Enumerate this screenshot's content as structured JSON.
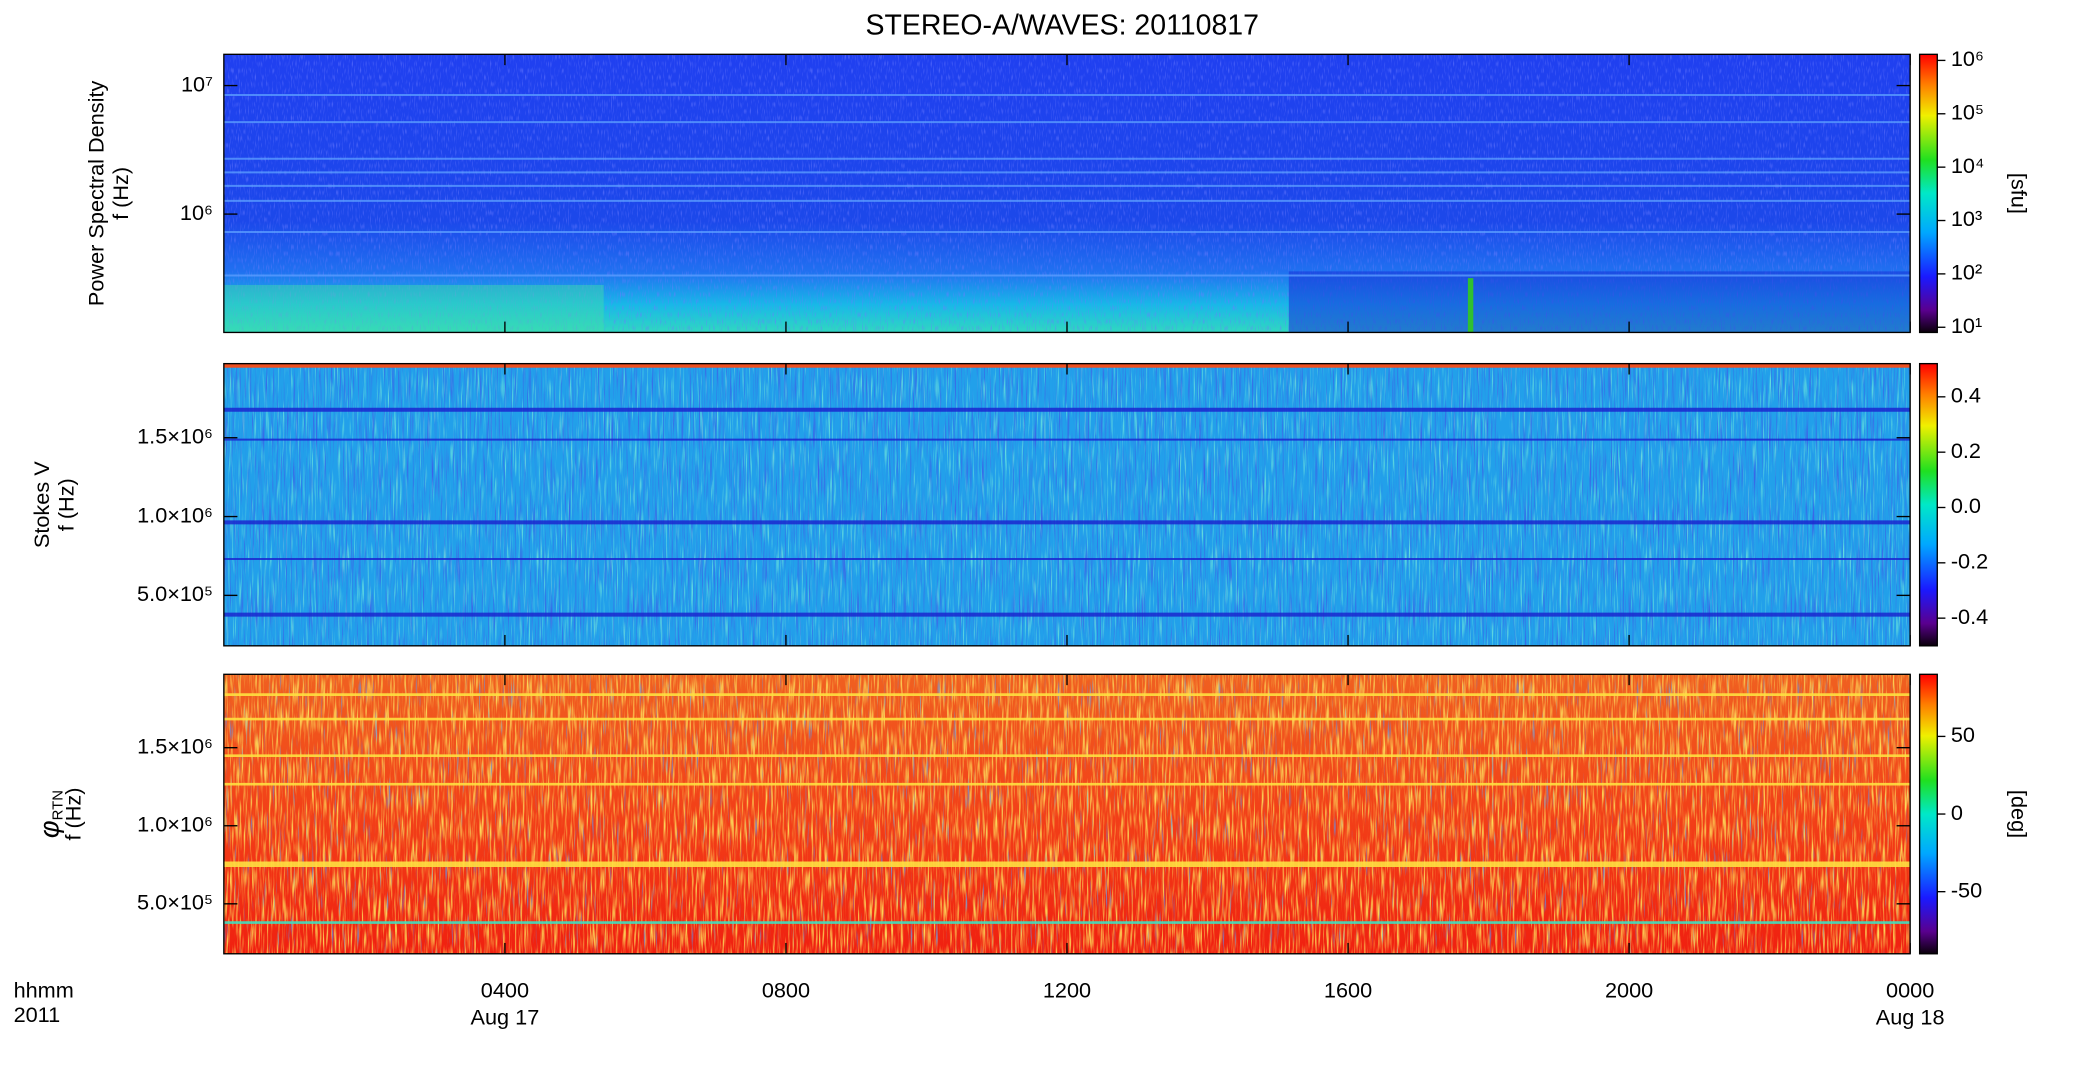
{
  "chart_data": [
    {
      "type": "spectrogram",
      "title": "STEREO-A/WAVES: 20110817",
      "ylabel": "Power Spectral Density",
      "ylabel_unit": "f (Hz)",
      "ylog": true,
      "ylim": [
        120000,
        17500000
      ],
      "yticks": [
        {
          "value": 1000000,
          "label": "10⁶"
        },
        {
          "value": 10000000,
          "label": "10⁷"
        }
      ],
      "xlim": [
        0,
        24
      ],
      "colorbar": {
        "log": true,
        "lim": [
          8,
          1300000
        ],
        "label": "[sfu]",
        "ticks": [
          {
            "value": 10,
            "label": "10¹"
          },
          {
            "value": 100,
            "label": "10²"
          },
          {
            "value": 1000,
            "label": "10³"
          },
          {
            "value": 10000,
            "label": "10⁴"
          },
          {
            "value": 100000,
            "label": "10⁵"
          },
          {
            "value": 1000000,
            "label": "10⁶"
          }
        ]
      }
    },
    {
      "type": "spectrogram",
      "ylabel": "Stokes V",
      "ylabel_unit": "f (Hz)",
      "ylog": false,
      "ylim": [
        180000,
        1970000
      ],
      "yticks": [
        {
          "value": 500000,
          "label": "5.0×10⁵"
        },
        {
          "value": 1000000,
          "label": "1.0×10⁶"
        },
        {
          "value": 1500000,
          "label": "1.5×10⁶"
        }
      ],
      "xlim": [
        0,
        24
      ],
      "colorbar": {
        "log": false,
        "lim": [
          -0.5,
          0.52
        ],
        "ticks": [
          -0.4,
          -0.2,
          {
            "value": 0,
            "label": "0.0"
          },
          0.2,
          0.4
        ]
      }
    },
    {
      "type": "spectrogram",
      "ylabel": "φ",
      "ylabel_subscript": "RTN",
      "ylabel_unit": "f (Hz)",
      "ylog": false,
      "ylim": [
        180000,
        1970000
      ],
      "yticks": [
        {
          "value": 500000,
          "label": "5.0×10⁵"
        },
        {
          "value": 1000000,
          "label": "1.0×10⁶"
        },
        {
          "value": 1500000,
          "label": "1.5×10⁶"
        }
      ],
      "xlim": [
        0,
        24
      ],
      "xticks": [
        {
          "value": 4,
          "label": "0400"
        },
        {
          "value": 8,
          "label": "0800"
        },
        {
          "value": 12,
          "label": "1200"
        },
        {
          "value": 16,
          "label": "1600"
        },
        {
          "value": 20,
          "label": "2000"
        },
        {
          "value": 24,
          "label": "0000"
        }
      ],
      "date_labels": [
        {
          "value": 4,
          "label": "Aug 17"
        },
        {
          "value": 24,
          "label": "Aug 18"
        }
      ],
      "time_unit": "hhmm",
      "year": "2011",
      "colorbar": {
        "log": false,
        "lim": [
          -90,
          90
        ],
        "label": "[deg]",
        "ticks": [
          -50,
          0,
          50
        ]
      }
    }
  ]
}
